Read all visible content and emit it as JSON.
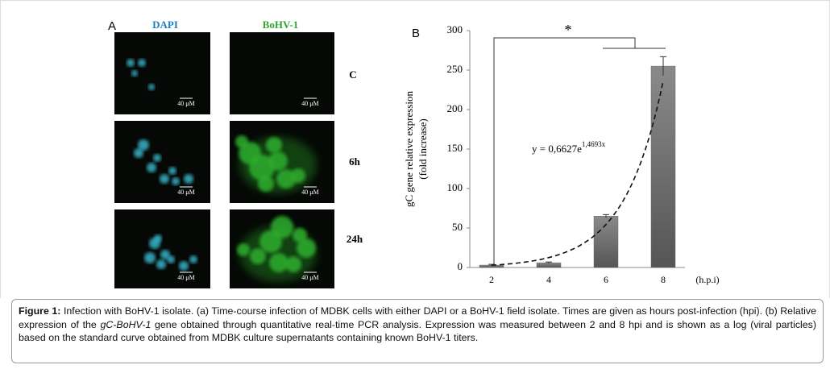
{
  "figure": {
    "panel_a": {
      "label": "A",
      "columns": [
        "DAPI",
        "BoHV-1"
      ],
      "rows": [
        "C",
        "6h",
        "24h"
      ],
      "scale_bar_label": "40 μM"
    },
    "caption": {
      "label": "Figure 1:",
      "text_1": " Infection with BoHV-1 isolate. (a) Time-course infection of MDBK cells with either DAPI or a BoHV-1 field isolate. Times are given as hours post-infection (hpi). (b) Relative expression of the ",
      "italic": "gC-BoHV-1",
      "text_2": " gene obtained through quantitative real-time PCR analysis. Expression was measured between 2 and 8 hpi and is shown as a log (viral particles) based on the standard curve obtained from MDBK culture supernatants containing known BoHV-1 titers."
    }
  },
  "chart_data": {
    "type": "bar",
    "panel_label": "B",
    "y_label": [
      "gC gene relative expression",
      "(fold increase)"
    ],
    "x_label": "(h.p.i)",
    "categories": [
      "2",
      "4",
      "6",
      "8"
    ],
    "values": [
      3,
      6,
      65,
      255
    ],
    "errors": [
      1,
      1,
      2,
      12
    ],
    "color": "#6e6e6e",
    "ylim": [
      0,
      300
    ],
    "yticks": [
      0,
      50,
      100,
      150,
      200,
      250,
      300
    ],
    "trendline": {
      "label": "y = 0,6627e",
      "exponent_label": "1,4693x",
      "a": 0.6627,
      "b": 1.4693
    },
    "significance": "*"
  }
}
